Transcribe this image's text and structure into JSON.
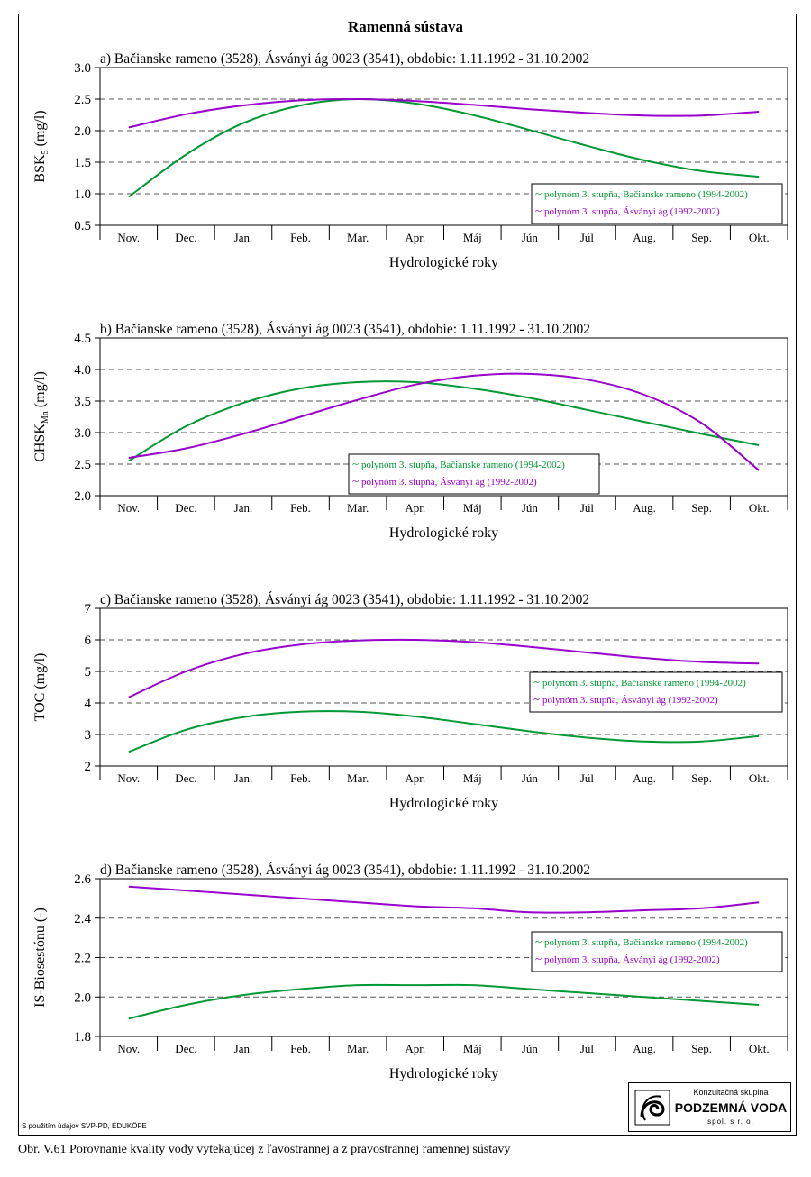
{
  "page": {
    "title": "Ramenná sústava",
    "credit": "S použitím údajov SVP-PD, ÉDUKÖFE",
    "caption": "Obr. V.61 Porovnanie kvality vody vytekajúcej z ľavostrannej a z pravostrannej ramennej sústavy"
  },
  "logo": {
    "top_text": "Konzultačná skupina",
    "name": "PODZEMNÁ VODA",
    "sub": "spol. s r. o."
  },
  "colors": {
    "green": "#009933",
    "purple": "#9900cc",
    "grid": "#444444"
  },
  "chart_data": [
    {
      "type": "line",
      "title": "a) Bačianske rameno (3528), Ásványi ág 0023 (3541), obdobie: 1.11.1992 - 31.10.2002",
      "ylabel": "BSK5 (mg/l)",
      "ylabel_main": "BSK",
      "ylabel_sub": "5",
      "ylabel_unit": "(mg/l)",
      "xlabel": "Hydrologické roky",
      "categories": [
        "Nov.",
        "Dec.",
        "Jan.",
        "Feb.",
        "Mar.",
        "Apr.",
        "Máj",
        "Jún",
        "Júl",
        "Aug.",
        "Sep.",
        "Okt."
      ],
      "ylim": [
        0.5,
        3.0
      ],
      "yticks": [
        "0.5",
        "1.0",
        "1.5",
        "2.0",
        "2.5",
        "3.0"
      ],
      "legend_position": "bottom-right",
      "series": [
        {
          "name": "polynóm 3. stupňa, Bačianske rameno (1994-2002)",
          "color": "#009933",
          "values": [
            0.95,
            1.62,
            2.12,
            2.4,
            2.5,
            2.43,
            2.25,
            2.01,
            1.76,
            1.53,
            1.36,
            1.27
          ]
        },
        {
          "name": "polynóm 3. stupňa, Ásványi ág (1992-2002)",
          "color": "#9900cc",
          "values": [
            2.05,
            2.26,
            2.4,
            2.48,
            2.5,
            2.47,
            2.41,
            2.34,
            2.28,
            2.24,
            2.24,
            2.3
          ]
        }
      ]
    },
    {
      "type": "line",
      "title": "b) Bačianske rameno (3528), Ásványi ág 0023 (3541), obdobie: 1.11.1992 - 31.10.2002",
      "ylabel": "CHSKMn (mg/l)",
      "ylabel_main": "CHSK",
      "ylabel_sub": "Mn",
      "ylabel_unit": "(mg/l)",
      "xlabel": "Hydrologické roky",
      "categories": [
        "Nov.",
        "Dec.",
        "Jan.",
        "Feb.",
        "Mar.",
        "Apr.",
        "Máj",
        "Jún",
        "Júl",
        "Aug.",
        "Sep.",
        "Okt."
      ],
      "ylim": [
        2.0,
        4.5
      ],
      "yticks": [
        "2.0",
        "2.5",
        "3.0",
        "3.5",
        "4.0",
        "4.5"
      ],
      "legend_position": "bottom-center",
      "series": [
        {
          "name": "polynóm 3. stupňa, Bačianske rameno (1994-2002)",
          "color": "#009933",
          "values": [
            2.55,
            3.1,
            3.47,
            3.7,
            3.8,
            3.8,
            3.7,
            3.55,
            3.36,
            3.17,
            2.98,
            2.8
          ]
        },
        {
          "name": "polynóm 3. stupňa, Ásványi ág (1992-2002)",
          "color": "#9900cc",
          "values": [
            2.6,
            2.75,
            2.98,
            3.25,
            3.52,
            3.76,
            3.9,
            3.93,
            3.84,
            3.6,
            3.15,
            2.4
          ]
        }
      ]
    },
    {
      "type": "line",
      "title": "c) Bačianske rameno (3528), Ásványi ág 0023 (3541), obdobie: 1.11.1992 - 31.10.2002",
      "ylabel": "TOC (mg/l)",
      "ylabel_main": "TOC",
      "ylabel_sub": "",
      "ylabel_unit": "(mg/l)",
      "xlabel": "Hydrologické roky",
      "categories": [
        "Nov.",
        "Dec.",
        "Jan.",
        "Feb.",
        "Mar.",
        "Apr.",
        "Máj",
        "Jún",
        "Júl",
        "Aug.",
        "Sep.",
        "Okt."
      ],
      "ylim": [
        2,
        7
      ],
      "yticks": [
        "2",
        "3",
        "4",
        "5",
        "6",
        "7"
      ],
      "legend_position": "right",
      "series": [
        {
          "name": "polynóm 3. stupňa, Bačianske rameno (1994-2002)",
          "color": "#009933",
          "values": [
            2.45,
            3.15,
            3.55,
            3.72,
            3.72,
            3.57,
            3.34,
            3.1,
            2.9,
            2.78,
            2.78,
            2.95
          ]
        },
        {
          "name": "polynóm 3. stupňa, Ásványi ág (1992-2002)",
          "color": "#9900cc",
          "values": [
            4.18,
            5.0,
            5.55,
            5.85,
            5.98,
            6.0,
            5.93,
            5.78,
            5.6,
            5.43,
            5.3,
            5.25
          ]
        }
      ]
    },
    {
      "type": "line",
      "title": "d) Bačianske rameno (3528), Ásványi ág 0023 (3541), obdobie: 1.11.1992 - 31.10.2002",
      "ylabel": "IS-Biosestónu (-)",
      "ylabel_main": "IS-Biosestónu",
      "ylabel_sub": "",
      "ylabel_unit": "(-)",
      "xlabel": "Hydrologické roky",
      "categories": [
        "Nov.",
        "Dec.",
        "Jan.",
        "Feb.",
        "Mar.",
        "Apr.",
        "Máj",
        "Jún",
        "Júl",
        "Aug.",
        "Sep.",
        "Okt."
      ],
      "ylim": [
        1.8,
        2.6
      ],
      "yticks": [
        "1.8",
        "2.0",
        "2.2",
        "2.4",
        "2.6"
      ],
      "legend_position": "right",
      "series": [
        {
          "name": "polynóm 3. stupňa, Bačianske rameno (1994-2002)",
          "color": "#009933",
          "values": [
            1.89,
            1.96,
            2.01,
            2.04,
            2.06,
            2.06,
            2.06,
            2.04,
            2.02,
            2.0,
            1.98,
            1.96
          ]
        },
        {
          "name": "polynóm 3. stupňa, Ásványi ág (1992-2002)",
          "color": "#9900cc",
          "values": [
            2.56,
            2.54,
            2.52,
            2.5,
            2.48,
            2.46,
            2.45,
            2.43,
            2.43,
            2.44,
            2.45,
            2.48
          ]
        }
      ]
    }
  ]
}
